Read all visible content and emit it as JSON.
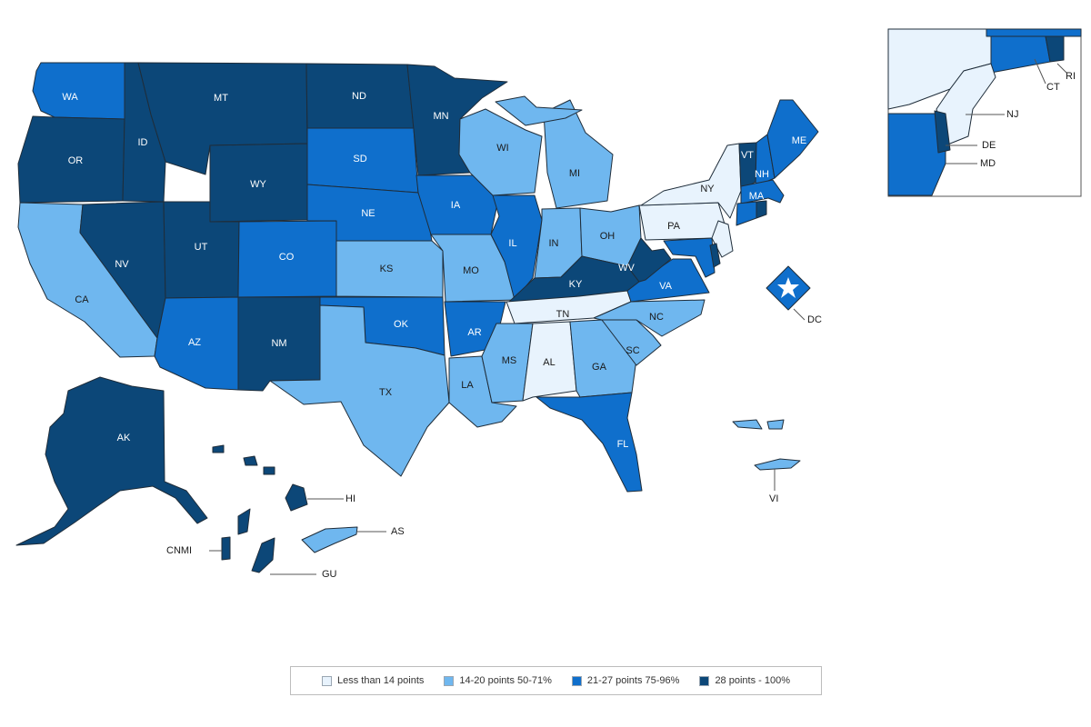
{
  "colors": {
    "cat1": "#e8f3fd",
    "cat2": "#6fb7ef",
    "cat3": "#0f6fcc",
    "cat4": "#0c4778"
  },
  "legend": [
    {
      "key": "cat1",
      "label": "Less than 14 points"
    },
    {
      "key": "cat2",
      "label": "14-20 points 50-71%"
    },
    {
      "key": "cat3",
      "label": "21-27 points 75-96%"
    },
    {
      "key": "cat4",
      "label": "28 points - 100%"
    }
  ],
  "states": {
    "WA": "cat3",
    "OR": "cat4",
    "CA": "cat2",
    "ID": "cat4",
    "NV": "cat4",
    "MT": "cat4",
    "WY": "cat4",
    "UT": "cat4",
    "AZ": "cat3",
    "CO": "cat3",
    "NM": "cat4",
    "ND": "cat4",
    "SD": "cat3",
    "NE": "cat3",
    "KS": "cat2",
    "OK": "cat3",
    "TX": "cat2",
    "MN": "cat4",
    "IA": "cat3",
    "MO": "cat2",
    "AR": "cat3",
    "LA": "cat2",
    "WI": "cat2",
    "IL": "cat3",
    "MI": "cat2",
    "IN": "cat2",
    "OH": "cat2",
    "KY": "cat4",
    "TN": "cat1",
    "MS": "cat2",
    "AL": "cat1",
    "GA": "cat2",
    "FL": "cat3",
    "SC": "cat2",
    "NC": "cat2",
    "VA": "cat3",
    "WV": "cat4",
    "PA": "cat1",
    "NY": "cat1",
    "VT": "cat4",
    "NH": "cat3",
    "ME": "cat3",
    "MA": "cat3",
    "RI": "cat4",
    "CT": "cat3",
    "NJ": "cat1",
    "DE": "cat4",
    "MD": "cat3",
    "DC": "cat3",
    "AK": "cat4",
    "HI": "cat4",
    "AS": "cat2",
    "GU": "cat4",
    "CNMI": "cat4",
    "VI": "cat2"
  },
  "labels": {
    "WA": "WA",
    "OR": "OR",
    "CA": "CA",
    "ID": "ID",
    "NV": "NV",
    "MT": "MT",
    "WY": "WY",
    "UT": "UT",
    "AZ": "AZ",
    "CO": "CO",
    "NM": "NM",
    "ND": "ND",
    "SD": "SD",
    "NE": "NE",
    "KS": "KS",
    "OK": "OK",
    "TX": "TX",
    "MN": "MN",
    "IA": "IA",
    "MO": "MO",
    "AR": "AR",
    "LA": "LA",
    "WI": "WI",
    "IL": "IL",
    "MI": "MI",
    "IN": "IN",
    "OH": "OH",
    "KY": "KY",
    "TN": "TN",
    "MS": "MS",
    "AL": "AL",
    "GA": "GA",
    "FL": "FL",
    "SC": "SC",
    "NC": "NC",
    "VA": "VA",
    "WV": "WV",
    "PA": "PA",
    "NY": "NY",
    "VT": "VT",
    "NH": "NH",
    "ME": "ME",
    "MA": "MA",
    "RI": "RI",
    "CT": "CT",
    "NJ": "NJ",
    "DE": "DE",
    "MD": "MD",
    "DC": "DC",
    "AK": "AK",
    "HI": "HI",
    "AS": "AS",
    "GU": "GU",
    "CNMI": "CNMI",
    "VI": "VI"
  }
}
